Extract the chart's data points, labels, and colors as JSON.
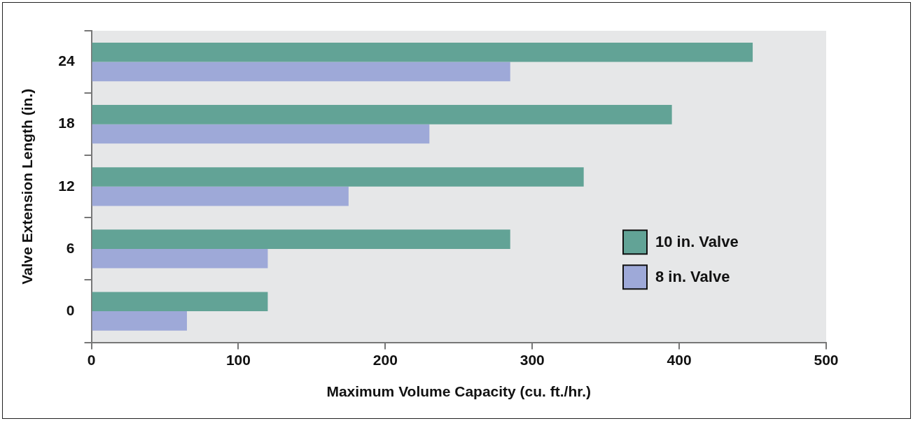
{
  "chart_data": {
    "type": "bar",
    "orientation": "horizontal",
    "xlabel": "Maximum Volume Capacity (cu. ft./hr.)",
    "ylabel": "Valve Extension Length (in.)",
    "categories": [
      "24",
      "18",
      "12",
      "6",
      "0"
    ],
    "series": [
      {
        "name": "10 in. Valve",
        "color": "#62a396",
        "values": [
          450,
          395,
          335,
          285,
          120
        ]
      },
      {
        "name": "8 in. Valve",
        "color": "#9ea9d8",
        "values": [
          285,
          230,
          175,
          120,
          65
        ]
      }
    ],
    "xlim": [
      0,
      500
    ],
    "xticks": [
      0,
      100,
      200,
      300,
      400,
      500
    ],
    "grid": false,
    "legend": "right"
  }
}
